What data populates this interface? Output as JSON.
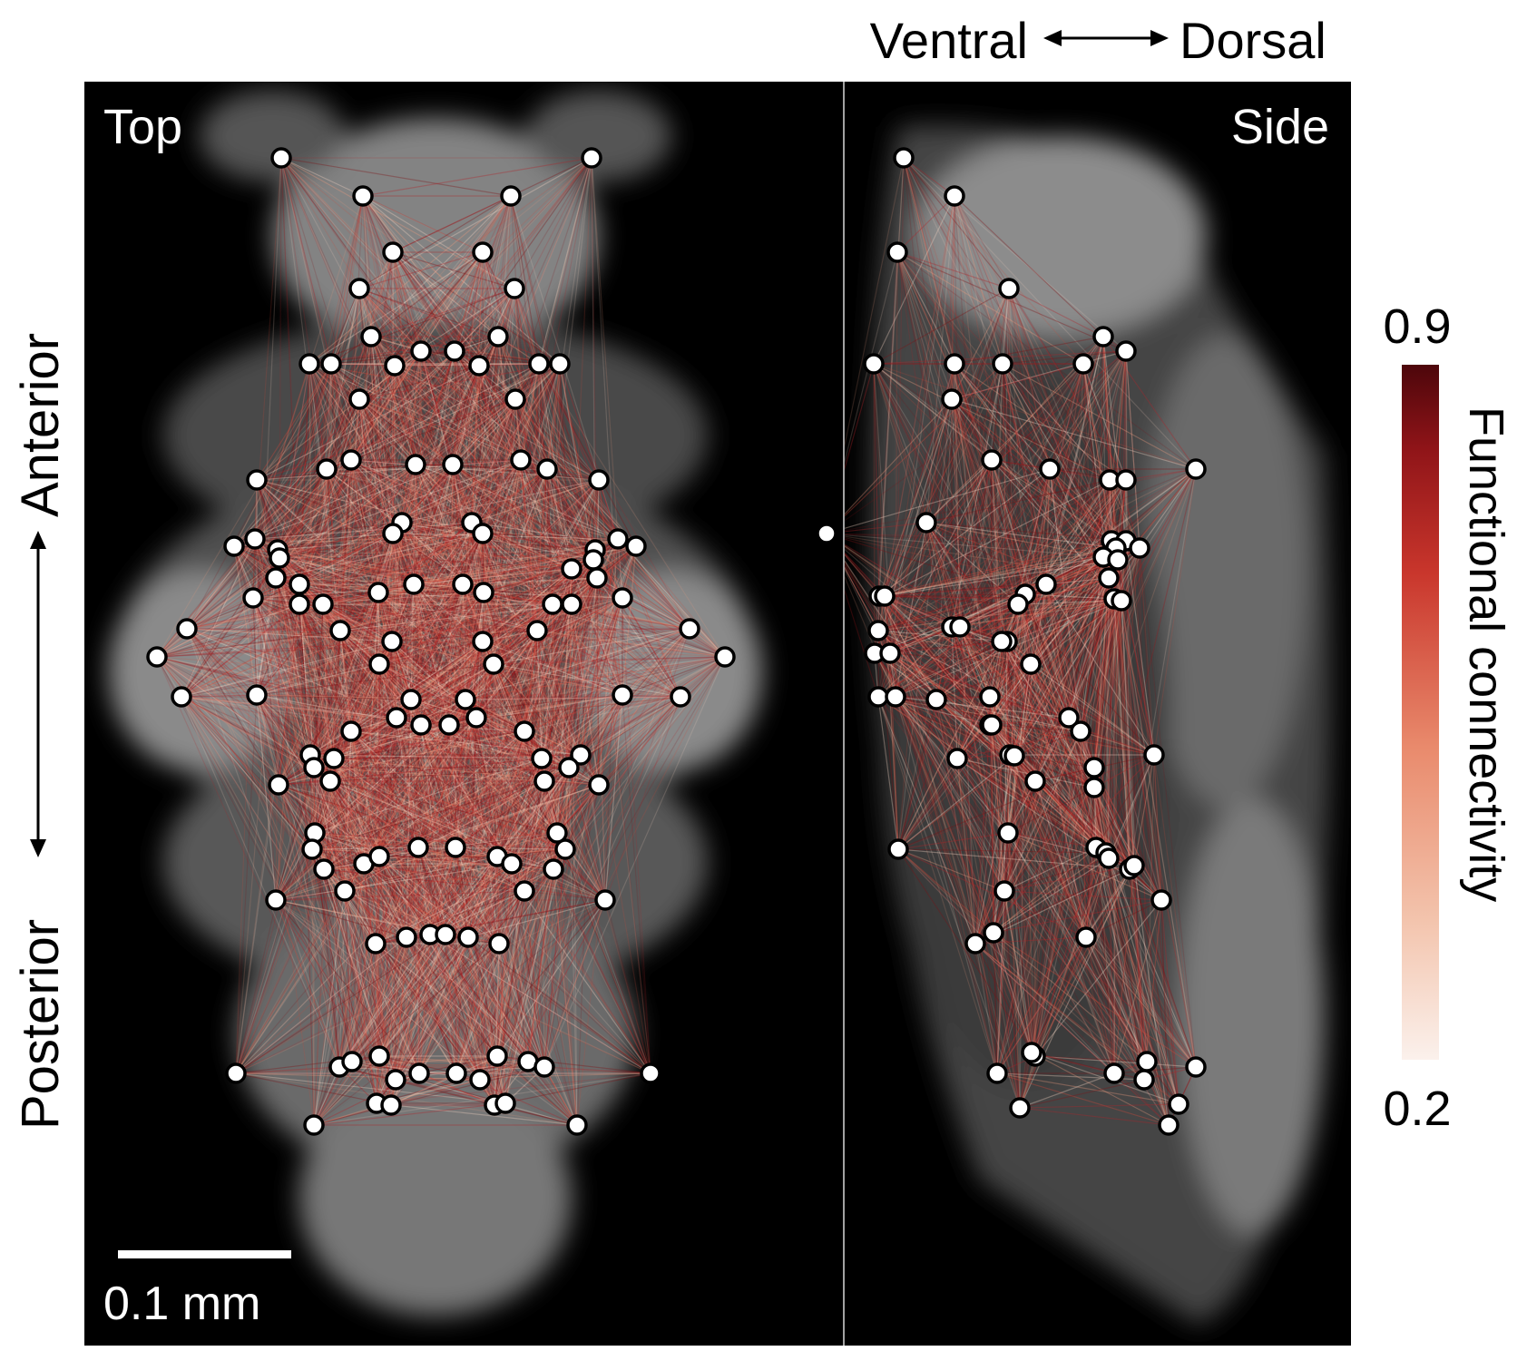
{
  "figure": {
    "panels": [
      {
        "id": "top",
        "label": "Top"
      },
      {
        "id": "side",
        "label": "Side"
      }
    ],
    "axis_labels": {
      "ventral": "Ventral",
      "dorsal": "Dorsal",
      "anterior": "Anterior",
      "posterior": "Posterior"
    },
    "scale_bar": {
      "label": "0.1 mm"
    },
    "colorbar": {
      "label": "Functional connectivity",
      "max_label": "0.9",
      "min_label": "0.2",
      "colors": [
        "#fbf1ec",
        "#f3c4ad",
        "#e98a6c",
        "#c9362c",
        "#8f1418",
        "#4d060b"
      ]
    },
    "colors": {
      "background": "#000000",
      "node_fill": "#ffffff",
      "node_stroke": "#000000",
      "edge": "#d63a2c"
    },
    "regions": {
      "top": [
        [
          310,
          174
        ],
        [
          652,
          174
        ],
        [
          400,
          216
        ],
        [
          563,
          216
        ],
        [
          433,
          278
        ],
        [
          532,
          278
        ],
        [
          396,
          318
        ],
        [
          567,
          318
        ],
        [
          409,
          371
        ],
        [
          549,
          371
        ],
        [
          341,
          401
        ],
        [
          365,
          401
        ],
        [
          435,
          403
        ],
        [
          464,
          387
        ],
        [
          501,
          387
        ],
        [
          528,
          403
        ],
        [
          594,
          401
        ],
        [
          617,
          401
        ],
        [
          396,
          440
        ],
        [
          568,
          440
        ],
        [
          283,
          529
        ],
        [
          360,
          517
        ],
        [
          387,
          507
        ],
        [
          458,
          512
        ],
        [
          499,
          512
        ],
        [
          574,
          507
        ],
        [
          603,
          517
        ],
        [
          660,
          529
        ],
        [
          258,
          602
        ],
        [
          281,
          594
        ],
        [
          306,
          606
        ],
        [
          308,
          615
        ],
        [
          443,
          576
        ],
        [
          433,
          588
        ],
        [
          520,
          576
        ],
        [
          532,
          588
        ],
        [
          656,
          606
        ],
        [
          654,
          617
        ],
        [
          681,
          594
        ],
        [
          701,
          602
        ],
        [
          304,
          637
        ],
        [
          330,
          644
        ],
        [
          279,
          659
        ],
        [
          330,
          666
        ],
        [
          356,
          666
        ],
        [
          417,
          653
        ],
        [
          456,
          644
        ],
        [
          510,
          644
        ],
        [
          533,
          653
        ],
        [
          609,
          666
        ],
        [
          630,
          666
        ],
        [
          630,
          627
        ],
        [
          658,
          637
        ],
        [
          686,
          659
        ],
        [
          206,
          693
        ],
        [
          375,
          695
        ],
        [
          592,
          695
        ],
        [
          760,
          693
        ],
        [
          173,
          724
        ],
        [
          432,
          707
        ],
        [
          418,
          732
        ],
        [
          532,
          707
        ],
        [
          544,
          732
        ],
        [
          799,
          724
        ],
        [
          200,
          768
        ],
        [
          283,
          766
        ],
        [
          686,
          766
        ],
        [
          750,
          768
        ],
        [
          453,
          771
        ],
        [
          437,
          791
        ],
        [
          464,
          799
        ],
        [
          495,
          799
        ],
        [
          513,
          771
        ],
        [
          525,
          791
        ],
        [
          387,
          806
        ],
        [
          578,
          806
        ],
        [
          342,
          832
        ],
        [
          346,
          846
        ],
        [
          368,
          836
        ],
        [
          640,
          832
        ],
        [
          627,
          846
        ],
        [
          597,
          836
        ],
        [
          307,
          865
        ],
        [
          364,
          861
        ],
        [
          600,
          861
        ],
        [
          660,
          865
        ],
        [
          347,
          918
        ],
        [
          344,
          936
        ],
        [
          357,
          958
        ],
        [
          380,
          982
        ],
        [
          401,
          952
        ],
        [
          418,
          944
        ],
        [
          461,
          934
        ],
        [
          502,
          934
        ],
        [
          548,
          944
        ],
        [
          564,
          952
        ],
        [
          614,
          918
        ],
        [
          623,
          936
        ],
        [
          610,
          958
        ],
        [
          578,
          982
        ],
        [
          304,
          992
        ],
        [
          667,
          992
        ],
        [
          414,
          1040
        ],
        [
          448,
          1033
        ],
        [
          474,
          1030
        ],
        [
          491,
          1030
        ],
        [
          516,
          1033
        ],
        [
          550,
          1040
        ],
        [
          260,
          1183
        ],
        [
          374,
          1176
        ],
        [
          388,
          1170
        ],
        [
          418,
          1164
        ],
        [
          436,
          1190
        ],
        [
          462,
          1183
        ],
        [
          503,
          1183
        ],
        [
          529,
          1190
        ],
        [
          548,
          1164
        ],
        [
          582,
          1170
        ],
        [
          600,
          1176
        ],
        [
          717,
          1183
        ],
        [
          415,
          1216
        ],
        [
          431,
          1218
        ],
        [
          545,
          1218
        ],
        [
          557,
          1216
        ],
        [
          346,
          1240
        ],
        [
          636,
          1240
        ]
      ],
      "side": [
        [
          996,
          174
        ],
        [
          1052,
          216
        ],
        [
          989,
          278
        ],
        [
          1112,
          318
        ],
        [
          1216,
          371
        ],
        [
          1241,
          387
        ],
        [
          963,
          401
        ],
        [
          1052,
          401
        ],
        [
          1105,
          401
        ],
        [
          1194,
          401
        ],
        [
          1049,
          440
        ],
        [
          1093,
          507
        ],
        [
          1157,
          517
        ],
        [
          1223,
          529
        ],
        [
          1241,
          529
        ],
        [
          1318,
          517
        ],
        [
          1021,
          576
        ],
        [
          911,
          588
        ],
        [
          1225,
          596
        ],
        [
          1241,
          596
        ],
        [
          1256,
          604
        ],
        [
          1230,
          604
        ],
        [
          1216,
          614
        ],
        [
          1232,
          617
        ],
        [
          1222,
          637
        ],
        [
          1228,
          660
        ],
        [
          1236,
          662
        ],
        [
          969,
          657
        ],
        [
          975,
          657
        ],
        [
          1153,
          644
        ],
        [
          1130,
          655
        ],
        [
          1122,
          666
        ],
        [
          968,
          695
        ],
        [
          1049,
          691
        ],
        [
          1058,
          691
        ],
        [
          964,
          720
        ],
        [
          981,
          720
        ],
        [
          1110,
          707
        ],
        [
          1104,
          707
        ],
        [
          1136,
          732
        ],
        [
          968,
          768
        ],
        [
          987,
          768
        ],
        [
          1032,
          771
        ],
        [
          1091,
          768
        ],
        [
          1091,
          799
        ],
        [
          1093,
          799
        ],
        [
          1178,
          791
        ],
        [
          1191,
          806
        ],
        [
          1055,
          836
        ],
        [
          1113,
          832
        ],
        [
          1118,
          833
        ],
        [
          1141,
          861
        ],
        [
          1206,
          846
        ],
        [
          1206,
          868
        ],
        [
          1272,
          832
        ],
        [
          990,
          936
        ],
        [
          1111,
          918
        ],
        [
          1208,
          934
        ],
        [
          1219,
          940
        ],
        [
          1222,
          946
        ],
        [
          1245,
          958
        ],
        [
          1250,
          954
        ],
        [
          1107,
          982
        ],
        [
          1280,
          992
        ],
        [
          1095,
          1028
        ],
        [
          1075,
          1040
        ],
        [
          1197,
          1033
        ],
        [
          1099,
          1183
        ],
        [
          1141,
          1164
        ],
        [
          1137,
          1160
        ],
        [
          1228,
          1183
        ],
        [
          1264,
          1170
        ],
        [
          1261,
          1190
        ],
        [
          1318,
          1176
        ],
        [
          1299,
          1217
        ],
        [
          1124,
          1221
        ],
        [
          1288,
          1240
        ]
      ]
    }
  }
}
